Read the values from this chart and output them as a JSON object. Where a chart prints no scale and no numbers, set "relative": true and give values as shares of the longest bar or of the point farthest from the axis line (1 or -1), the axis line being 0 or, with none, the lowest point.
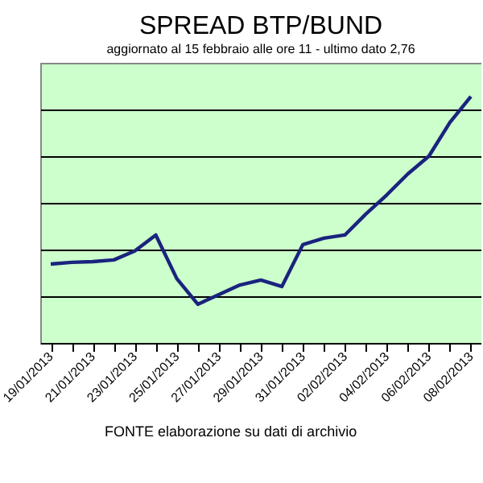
{
  "chart_data": {
    "type": "line",
    "title": "SPREAD  BTP/BUND",
    "subtitle": "aggiornato al 15 febbraio alle ore 11 - ultimo dato 2,76",
    "categories": [
      "19/01/2013",
      null,
      "21/01/2013",
      null,
      "23/01/2013",
      null,
      "25/01/2013",
      null,
      "27/01/2013",
      null,
      "29/01/2013",
      null,
      "31/01/2013",
      null,
      "02/02/2013",
      null,
      "04/02/2013",
      null,
      "06/02/2013",
      null,
      "08/02/2013"
    ],
    "relative": true,
    "series": [
      {
        "color": "#1a237e",
        "values": [
          0.32,
          0.327,
          0.33,
          0.337,
          0.373,
          0.438,
          0.261,
          0.157,
          0.196,
          0.235,
          0.255,
          0.229,
          0.399,
          0.425,
          0.438,
          0.523,
          0.601,
          0.686,
          0.758,
          0.895,
          1.0
        ]
      }
    ],
    "grid": "y",
    "marker": "none",
    "line_style": "solid",
    "annotations": [
      "FONTE elaborazione su dati di archivio"
    ]
  }
}
